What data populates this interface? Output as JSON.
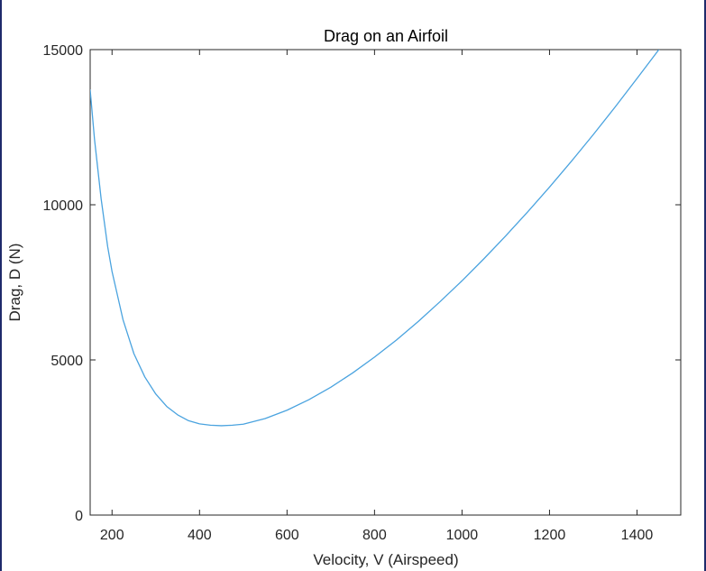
{
  "chart_data": {
    "type": "line",
    "title": "Drag on an Airfoil",
    "xlabel": "Velocity, V (Airspeed)",
    "ylabel": "Drag, D (N)",
    "xlim": [
      150,
      1500
    ],
    "ylim": [
      0,
      15000
    ],
    "xticks": [
      200,
      400,
      600,
      800,
      1000,
      1200,
      1400
    ],
    "yticks": [
      0,
      5000,
      10000,
      15000
    ],
    "grid": false,
    "legend": "none",
    "series": [
      {
        "color": "#4aa3df",
        "x": [
          150,
          160,
          175,
          190,
          200,
          225,
          250,
          275,
          300,
          325,
          350,
          375,
          400,
          425,
          450,
          475,
          500,
          550,
          600,
          650,
          700,
          750,
          800,
          850,
          900,
          950,
          1000,
          1050,
          1100,
          1150,
          1200,
          1250,
          1300,
          1350,
          1400,
          1450,
          1460
        ],
        "y": [
          13700,
          12100,
          10200,
          8650,
          7850,
          6300,
          5200,
          4450,
          3900,
          3500,
          3230,
          3040,
          2940,
          2895,
          2880,
          2895,
          2930,
          3110,
          3380,
          3720,
          4120,
          4580,
          5090,
          5640,
          6240,
          6880,
          7550,
          8260,
          9000,
          9770,
          10570,
          11400,
          12260,
          13150,
          14070,
          15000,
          15200
        ]
      }
    ]
  },
  "colors": {
    "line": "#4aa3df",
    "axes": "#262626",
    "frame_edge": "#1f2a6b"
  }
}
